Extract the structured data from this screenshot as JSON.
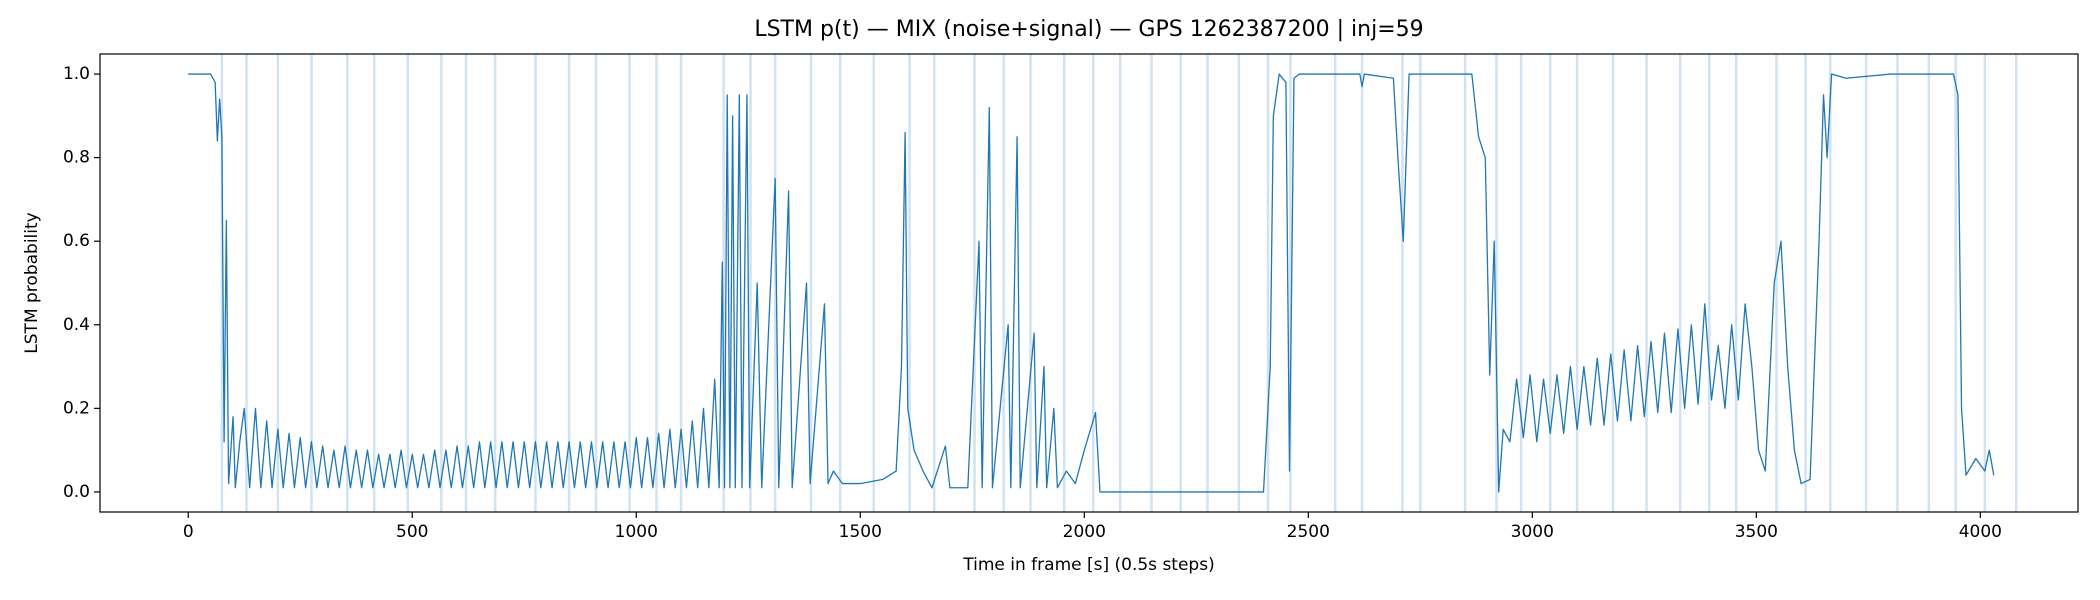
{
  "chart_data": {
    "type": "line",
    "title": "LSTM p(t) — MIX (noise+signal) — GPS 1262387200 | inj=59",
    "x_label": "Time in frame [s] (0.5s steps)",
    "y_label": "LSTM probability",
    "xlim": [
      -197,
      4218
    ],
    "ylim": [
      -0.048,
      1.048
    ],
    "xticks": [
      0,
      500,
      1000,
      1500,
      2000,
      2500,
      3000,
      3500,
      4000
    ],
    "yticks": [
      {
        "value": 0,
        "label": "0.0"
      },
      0.2,
      0.4,
      0.6,
      0.8,
      {
        "value": 1,
        "label": "1.0"
      }
    ],
    "injection_color": "#c6dbef",
    "injections": [
      75,
      130,
      200,
      275,
      355,
      415,
      490,
      565,
      620,
      685,
      775,
      850,
      910,
      985,
      1045,
      1100,
      1195,
      1255,
      1310,
      1390,
      1455,
      1530,
      1610,
      1665,
      1755,
      1820,
      1880,
      1955,
      2020,
      2080,
      2150,
      2215,
      2275,
      2345,
      2410,
      2460,
      2560,
      2620,
      2710,
      2750,
      2850,
      2920,
      2975,
      3040,
      3100,
      3180,
      3255,
      3330,
      3395,
      3455,
      3545,
      3610,
      3665,
      3745,
      3815,
      3885,
      3945,
      4010,
      4080
    ],
    "color": "#1f77b4",
    "x": [
      0,
      50,
      60,
      65,
      70,
      75,
      80,
      85,
      90,
      100,
      105,
      115,
      125,
      137,
      150,
      162,
      175,
      187,
      200,
      212,
      225,
      237,
      250,
      262,
      275,
      287,
      300,
      312,
      325,
      337,
      350,
      362,
      375,
      387,
      400,
      412,
      425,
      437,
      450,
      462,
      475,
      487,
      500,
      512,
      525,
      537,
      550,
      562,
      575,
      587,
      600,
      612,
      625,
      637,
      650,
      662,
      675,
      687,
      700,
      712,
      725,
      737,
      750,
      762,
      775,
      787,
      800,
      812,
      825,
      837,
      850,
      862,
      875,
      887,
      900,
      912,
      925,
      937,
      950,
      962,
      975,
      987,
      1000,
      1012,
      1025,
      1037,
      1050,
      1062,
      1075,
      1087,
      1100,
      1112,
      1125,
      1137,
      1150,
      1162,
      1175,
      1185,
      1192,
      1197,
      1203,
      1209,
      1215,
      1221,
      1230,
      1236,
      1247,
      1253,
      1270,
      1280,
      1310,
      1318,
      1340,
      1348,
      1380,
      1388,
      1420,
      1428,
      1440,
      1460,
      1500,
      1550,
      1580,
      1592,
      1600,
      1606,
      1620,
      1640,
      1660,
      1690,
      1700,
      1740,
      1765,
      1772,
      1788,
      1795,
      1830,
      1836,
      1850,
      1857,
      1888,
      1894,
      1910,
      1916,
      1932,
      1940,
      1960,
      1980,
      2000,
      2025,
      2035,
      2400,
      2415,
      2422,
      2435,
      2450,
      2458,
      2468,
      2480,
      2615,
      2620,
      2625,
      2690,
      2700,
      2712,
      2725,
      2865,
      2880,
      2895,
      2905,
      2915,
      2925,
      2935,
      2950,
      2965,
      2980,
      2995,
      3010,
      3025,
      3040,
      3055,
      3070,
      3085,
      3100,
      3115,
      3130,
      3145,
      3160,
      3175,
      3190,
      3205,
      3220,
      3235,
      3250,
      3265,
      3280,
      3295,
      3310,
      3325,
      3340,
      3355,
      3370,
      3385,
      3400,
      3415,
      3430,
      3445,
      3460,
      3475,
      3490,
      3505,
      3520,
      3540,
      3555,
      3570,
      3585,
      3600,
      3620,
      3640,
      3650,
      3658,
      3668,
      3700,
      3800,
      3940,
      3950,
      3958,
      3968,
      3990,
      4010,
      4020,
      4030
    ],
    "values": [
      1.0,
      1.0,
      0.98,
      0.84,
      0.94,
      0.85,
      0.12,
      0.65,
      0.02,
      0.18,
      0.01,
      0.12,
      0.2,
      0.01,
      0.2,
      0.01,
      0.17,
      0.01,
      0.15,
      0.01,
      0.14,
      0.01,
      0.13,
      0.01,
      0.12,
      0.01,
      0.11,
      0.01,
      0.1,
      0.01,
      0.11,
      0.01,
      0.1,
      0.01,
      0.1,
      0.01,
      0.09,
      0.01,
      0.09,
      0.01,
      0.1,
      0.01,
      0.09,
      0.01,
      0.09,
      0.01,
      0.1,
      0.01,
      0.1,
      0.01,
      0.11,
      0.01,
      0.11,
      0.01,
      0.12,
      0.01,
      0.12,
      0.01,
      0.12,
      0.01,
      0.12,
      0.01,
      0.12,
      0.01,
      0.12,
      0.01,
      0.12,
      0.01,
      0.12,
      0.01,
      0.12,
      0.01,
      0.12,
      0.01,
      0.12,
      0.01,
      0.12,
      0.01,
      0.12,
      0.01,
      0.12,
      0.01,
      0.13,
      0.01,
      0.13,
      0.01,
      0.14,
      0.01,
      0.15,
      0.01,
      0.15,
      0.01,
      0.17,
      0.01,
      0.2,
      0.01,
      0.27,
      0.01,
      0.55,
      0.01,
      0.95,
      0.01,
      0.9,
      0.01,
      0.95,
      0.01,
      0.95,
      0.01,
      0.5,
      0.01,
      0.75,
      0.01,
      0.72,
      0.01,
      0.5,
      0.02,
      0.45,
      0.02,
      0.05,
      0.02,
      0.02,
      0.03,
      0.05,
      0.3,
      0.86,
      0.2,
      0.1,
      0.05,
      0.01,
      0.11,
      0.01,
      0.01,
      0.6,
      0.01,
      0.92,
      0.01,
      0.4,
      0.01,
      0.85,
      0.01,
      0.38,
      0.01,
      0.3,
      0.01,
      0.2,
      0.01,
      0.05,
      0.02,
      0.1,
      0.19,
      0.0,
      0.0,
      0.3,
      0.9,
      1.0,
      0.98,
      0.05,
      0.99,
      1.0,
      1.0,
      0.97,
      1.0,
      0.99,
      0.8,
      0.6,
      1.0,
      1.0,
      0.85,
      0.8,
      0.28,
      0.6,
      0.0,
      0.15,
      0.12,
      0.27,
      0.13,
      0.28,
      0.12,
      0.27,
      0.14,
      0.28,
      0.14,
      0.3,
      0.15,
      0.3,
      0.16,
      0.32,
      0.16,
      0.33,
      0.17,
      0.34,
      0.17,
      0.35,
      0.18,
      0.36,
      0.19,
      0.38,
      0.19,
      0.39,
      0.2,
      0.4,
      0.21,
      0.45,
      0.22,
      0.35,
      0.2,
      0.4,
      0.22,
      0.45,
      0.3,
      0.1,
      0.05,
      0.5,
      0.6,
      0.3,
      0.1,
      0.02,
      0.03,
      0.6,
      0.95,
      0.8,
      1.0,
      0.99,
      1.0,
      1.0,
      0.95,
      0.2,
      0.04,
      0.08,
      0.05,
      0.1,
      0.04
    ]
  }
}
